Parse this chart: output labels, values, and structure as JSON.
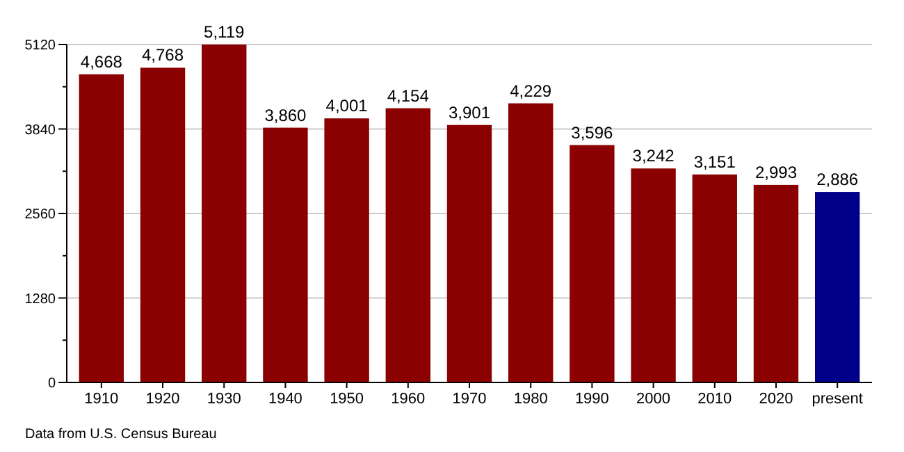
{
  "chart_data": {
    "type": "bar",
    "categories": [
      "1910",
      "1920",
      "1930",
      "1940",
      "1950",
      "1960",
      "1970",
      "1980",
      "1990",
      "2000",
      "2010",
      "2020",
      "present"
    ],
    "values": [
      4668,
      4768,
      5119,
      3860,
      4001,
      4154,
      3901,
      4229,
      3596,
      3242,
      3151,
      2993,
      2886
    ],
    "value_labels": [
      "4,668",
      "4,768",
      "5,119",
      "3,860",
      "4,001",
      "4,154",
      "3,901",
      "4,229",
      "3,596",
      "3,242",
      "3,151",
      "2,993",
      "2,886"
    ],
    "colors": [
      "#8b0000",
      "#8b0000",
      "#8b0000",
      "#8b0000",
      "#8b0000",
      "#8b0000",
      "#8b0000",
      "#8b0000",
      "#8b0000",
      "#8b0000",
      "#8b0000",
      "#8b0000",
      "#00008b"
    ],
    "ylim": [
      0,
      5120
    ],
    "yticks": [
      0,
      {
        "value": 640,
        "label": null
      },
      1280,
      {
        "value": 1920,
        "label": null
      },
      2560,
      {
        "value": 3200,
        "label": null
      },
      3840,
      {
        "value": 4480,
        "label": null
      },
      5120
    ],
    "grid": "y",
    "annotations": [
      "Data from U.S. Census Bureau"
    ]
  }
}
